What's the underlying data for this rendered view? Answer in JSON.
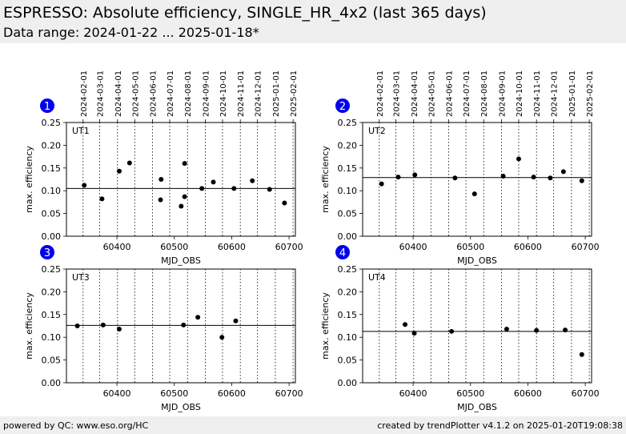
{
  "header": {
    "title": "ESPRESSO: Absolute efficiency, SINGLE_HR_4x2 (last 365 days)",
    "subtitle": "Data range: 2024-01-22 ... 2025-01-18*"
  },
  "footer": {
    "left": "powered by QC: www.eso.org/HC",
    "right": "created by trendPlotter v4.1.2 on 2025-01-20T19:08:38"
  },
  "colors": {
    "background": "#ffffff",
    "header_bg": "#efefef",
    "badge": "#0000ee",
    "points": "#000000"
  },
  "chart_data": [
    {
      "type": "scatter",
      "badge": "1",
      "label": "UT1",
      "xlabel": "MJD_OBS",
      "ylabel": "max. efficiency",
      "xlim": [
        60312,
        60711
      ],
      "ylim": [
        0,
        0.25
      ],
      "xticks": [
        60400,
        60500,
        60600,
        60700
      ],
      "yticks": [
        0.0,
        0.05,
        0.1,
        0.15,
        0.2,
        0.25
      ],
      "reference_line": 0.105,
      "date_ticks": [
        "2024-02-01",
        "2024-03-01",
        "2024-04-01",
        "2024-05-01",
        "2024-06-01",
        "2024-07-01",
        "2024-08-01",
        "2024-09-01",
        "2024-10-01",
        "2024-11-01",
        "2024-12-01",
        "2025-01-01",
        "2025-02-01"
      ],
      "date_tick_mjd": [
        60341,
        60370,
        60401,
        60431,
        60462,
        60492,
        60523,
        60554,
        60584,
        60615,
        60645,
        60676,
        60707
      ],
      "points": [
        [
          60343,
          0.112
        ],
        [
          60374,
          0.082
        ],
        [
          60404,
          0.143
        ],
        [
          60422,
          0.161
        ],
        [
          60476,
          0.08
        ],
        [
          60477,
          0.125
        ],
        [
          60512,
          0.066
        ],
        [
          60518,
          0.087
        ],
        [
          60518,
          0.16
        ],
        [
          60548,
          0.105
        ],
        [
          60568,
          0.119
        ],
        [
          60604,
          0.105
        ],
        [
          60636,
          0.122
        ],
        [
          60666,
          0.103
        ],
        [
          60692,
          0.073
        ]
      ]
    },
    {
      "type": "scatter",
      "badge": "2",
      "label": "UT2",
      "xlabel": "MJD_OBS",
      "ylabel": "max. efficiency",
      "xlim": [
        60312,
        60711
      ],
      "ylim": [
        0,
        0.25
      ],
      "xticks": [
        60400,
        60500,
        60600,
        60700
      ],
      "yticks": [
        0.0,
        0.05,
        0.1,
        0.15,
        0.2,
        0.25
      ],
      "reference_line": 0.129,
      "date_ticks": [
        "2024-02-01",
        "2024-03-01",
        "2024-04-01",
        "2024-05-01",
        "2024-06-01",
        "2024-07-01",
        "2024-08-01",
        "2024-09-01",
        "2024-10-01",
        "2024-11-01",
        "2024-12-01",
        "2025-01-01",
        "2025-02-01"
      ],
      "date_tick_mjd": [
        60341,
        60370,
        60401,
        60431,
        60462,
        60492,
        60523,
        60554,
        60584,
        60615,
        60645,
        60676,
        60707
      ],
      "points": [
        [
          60345,
          0.115
        ],
        [
          60374,
          0.13
        ],
        [
          60403,
          0.135
        ],
        [
          60473,
          0.128
        ],
        [
          60507,
          0.093
        ],
        [
          60557,
          0.132
        ],
        [
          60584,
          0.17
        ],
        [
          60610,
          0.13
        ],
        [
          60639,
          0.128
        ],
        [
          60662,
          0.142
        ],
        [
          60694,
          0.122
        ]
      ]
    },
    {
      "type": "scatter",
      "badge": "3",
      "label": "UT3",
      "xlabel": "MJD_OBS",
      "ylabel": "max. efficiency",
      "xlim": [
        60312,
        60711
      ],
      "ylim": [
        0,
        0.25
      ],
      "xticks": [
        60400,
        60500,
        60600,
        60700
      ],
      "yticks": [
        0.0,
        0.05,
        0.1,
        0.15,
        0.2,
        0.25
      ],
      "reference_line": 0.126,
      "date_tick_mjd": [
        60341,
        60370,
        60401,
        60431,
        60462,
        60492,
        60523,
        60554,
        60584,
        60615,
        60645,
        60676,
        60707
      ],
      "points": [
        [
          60331,
          0.125
        ],
        [
          60376,
          0.127
        ],
        [
          60404,
          0.118
        ],
        [
          60516,
          0.127
        ],
        [
          60541,
          0.144
        ],
        [
          60583,
          0.1
        ],
        [
          60607,
          0.136
        ]
      ]
    },
    {
      "type": "scatter",
      "badge": "4",
      "label": "UT4",
      "xlabel": "MJD_OBS",
      "ylabel": "max. efficiency",
      "xlim": [
        60312,
        60711
      ],
      "ylim": [
        0,
        0.25
      ],
      "xticks": [
        60400,
        60500,
        60600,
        60700
      ],
      "yticks": [
        0.0,
        0.05,
        0.1,
        0.15,
        0.2,
        0.25
      ],
      "reference_line": 0.113,
      "date_tick_mjd": [
        60341,
        60370,
        60401,
        60431,
        60462,
        60492,
        60523,
        60554,
        60584,
        60615,
        60645,
        60676,
        60707
      ],
      "points": [
        [
          60386,
          0.128
        ],
        [
          60402,
          0.109
        ],
        [
          60467,
          0.113
        ],
        [
          60563,
          0.118
        ],
        [
          60615,
          0.115
        ],
        [
          60665,
          0.116
        ],
        [
          60694,
          0.062
        ]
      ]
    }
  ]
}
